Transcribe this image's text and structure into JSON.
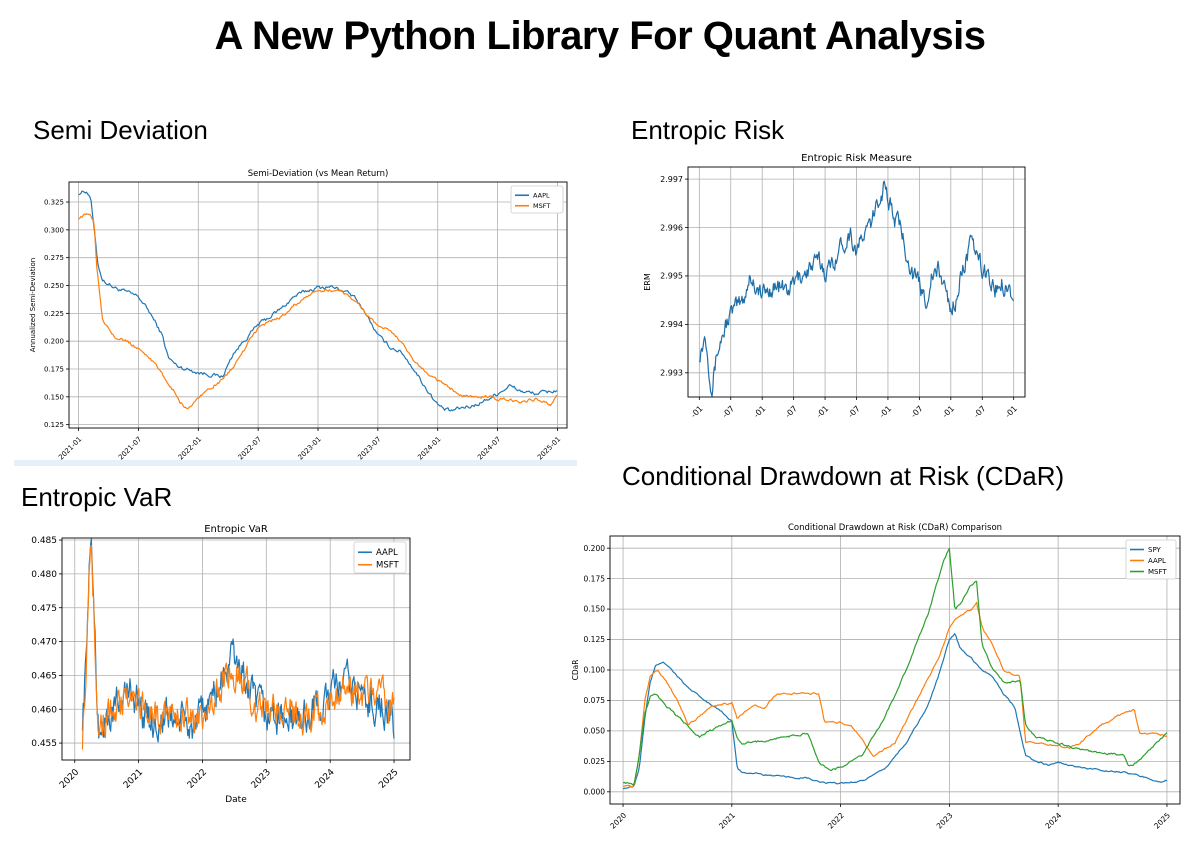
{
  "page": {
    "title": "A New Python Library For Quant Analysis"
  },
  "sections": {
    "semi": "Semi Deviation",
    "erm": "Entropic Risk",
    "evar": "Entropic VaR",
    "cdar": "Conditional Drawdown at Risk (CDaR)"
  },
  "colors": {
    "blue": "#1f77b4",
    "orange": "#ff7f0e",
    "green": "#2ca02c",
    "grid": "#b0b0b0"
  },
  "chart_data": [
    {
      "id": "semi",
      "type": "line",
      "title": "Semi-Deviation (vs Mean Return)",
      "xlabel": "",
      "ylabel": "Annualized Semi-Deviation",
      "xlim": [
        2020.92,
        2025.08
      ],
      "ylim": [
        0.122,
        0.343
      ],
      "x_ticks": [
        2021.0,
        2021.5,
        2022.0,
        2022.5,
        2023.0,
        2023.5,
        2024.0,
        2024.5,
        2025.0
      ],
      "x_tick_labels": [
        "2021-01",
        "2021-07",
        "2022-01",
        "2022-07",
        "2023-01",
        "2023-07",
        "2024-01",
        "2024-07",
        "2025-01"
      ],
      "y_ticks": [
        0.125,
        0.15,
        0.175,
        0.2,
        0.225,
        0.25,
        0.275,
        0.3,
        0.325
      ],
      "y_tick_labels": [
        "0.125",
        "0.150",
        "0.175",
        "0.200",
        "0.225",
        "0.250",
        "0.275",
        "0.300",
        "0.325"
      ],
      "legend": "top-right",
      "series": [
        {
          "name": "AAPL",
          "color": "#1f77b4",
          "noise": 0.0015,
          "x": [
            2021.0,
            2021.06,
            2021.1,
            2021.13,
            2021.16,
            2021.2,
            2021.3,
            2021.5,
            2021.6,
            2021.7,
            2021.75,
            2021.82,
            2021.9,
            2022.0,
            2022.1,
            2022.2,
            2022.3,
            2022.5,
            2022.6,
            2022.7,
            2022.8,
            2022.9,
            2023.0,
            2023.1,
            2023.2,
            2023.3,
            2023.4,
            2023.5,
            2023.6,
            2023.7,
            2023.8,
            2023.9,
            2024.0,
            2024.05,
            2024.1,
            2024.2,
            2024.3,
            2024.4,
            2024.5,
            2024.6,
            2024.7,
            2024.8,
            2024.9,
            2025.0
          ],
          "y": [
            0.333,
            0.335,
            0.33,
            0.3,
            0.27,
            0.255,
            0.248,
            0.24,
            0.225,
            0.205,
            0.185,
            0.178,
            0.175,
            0.172,
            0.17,
            0.168,
            0.19,
            0.215,
            0.222,
            0.23,
            0.24,
            0.245,
            0.248,
            0.249,
            0.246,
            0.24,
            0.225,
            0.205,
            0.195,
            0.19,
            0.175,
            0.158,
            0.143,
            0.139,
            0.137,
            0.14,
            0.142,
            0.147,
            0.153,
            0.16,
            0.155,
            0.153,
            0.154,
            0.156
          ]
        },
        {
          "name": "MSFT",
          "color": "#ff7f0e",
          "noise": 0.0012,
          "x": [
            2021.0,
            2021.06,
            2021.1,
            2021.13,
            2021.15,
            2021.2,
            2021.3,
            2021.4,
            2021.5,
            2021.6,
            2021.7,
            2021.75,
            2021.8,
            2021.85,
            2021.9,
            2021.95,
            2022.0,
            2022.1,
            2022.2,
            2022.3,
            2022.5,
            2022.6,
            2022.7,
            2022.8,
            2022.9,
            2023.0,
            2023.1,
            2023.2,
            2023.3,
            2023.4,
            2023.5,
            2023.6,
            2023.7,
            2023.8,
            2023.9,
            2024.0,
            2024.1,
            2024.2,
            2024.3,
            2024.4,
            2024.5,
            2024.6,
            2024.7,
            2024.8,
            2024.9,
            2024.95,
            2025.0
          ],
          "y": [
            0.311,
            0.313,
            0.315,
            0.307,
            0.27,
            0.22,
            0.205,
            0.2,
            0.193,
            0.185,
            0.17,
            0.162,
            0.155,
            0.145,
            0.14,
            0.142,
            0.15,
            0.158,
            0.165,
            0.178,
            0.212,
            0.218,
            0.222,
            0.232,
            0.24,
            0.244,
            0.246,
            0.245,
            0.238,
            0.225,
            0.214,
            0.21,
            0.198,
            0.182,
            0.172,
            0.165,
            0.158,
            0.152,
            0.15,
            0.15,
            0.148,
            0.147,
            0.146,
            0.148,
            0.145,
            0.143,
            0.152
          ]
        }
      ]
    },
    {
      "id": "erm",
      "type": "line",
      "title": "Entropic Risk Measure",
      "xlabel": "",
      "ylabel": "ERM",
      "xlim": [
        2019.82,
        2025.18
      ],
      "ylim": [
        2.9925,
        2.99725
      ],
      "x_ticks": [
        2020.0,
        2020.5,
        2021.0,
        2021.5,
        2022.0,
        2022.5,
        2023.0,
        2023.5,
        2024.0,
        2024.5,
        2025.0
      ],
      "x_tick_labels": [
        "-01",
        "-07",
        "-01",
        "-07",
        "-01",
        "-07",
        "-01",
        "-07",
        "-01",
        "-07",
        "-01"
      ],
      "y_ticks": [
        2.993,
        2.994,
        2.995,
        2.996,
        2.997
      ],
      "y_tick_labels": [
        "2.993",
        "2.994",
        "2.995",
        "2.996",
        "2.997"
      ],
      "series": [
        {
          "name": "",
          "color": "#1f6ea8",
          "noise": 0.00016,
          "x": [
            2020.0,
            2020.1,
            2020.15,
            2020.2,
            2020.28,
            2020.35,
            2020.45,
            2020.55,
            2020.7,
            2020.8,
            2020.9,
            2021.0,
            2021.2,
            2021.4,
            2021.6,
            2021.8,
            2021.9,
            2022.0,
            2022.1,
            2022.2,
            2022.3,
            2022.4,
            2022.5,
            2022.6,
            2022.7,
            2022.8,
            2022.85,
            2022.9,
            2022.95,
            2023.0,
            2023.1,
            2023.2,
            2023.3,
            2023.4,
            2023.5,
            2023.6,
            2023.7,
            2023.8,
            2023.9,
            2024.0,
            2024.1,
            2024.2,
            2024.3,
            2024.4,
            2024.5,
            2024.6,
            2024.7,
            2024.8,
            2024.9,
            2025.0
          ],
          "y": [
            2.9934,
            2.9938,
            2.9932,
            2.9927,
            2.9934,
            2.9937,
            2.9941,
            2.9943,
            2.9945,
            2.995,
            2.9948,
            2.9946,
            2.9948,
            2.9947,
            2.995,
            2.9952,
            2.9953,
            2.9951,
            2.9952,
            2.9955,
            2.9957,
            2.9959,
            2.9955,
            2.9958,
            2.996,
            2.9963,
            2.9966,
            2.9967,
            2.997,
            2.9966,
            2.9962,
            2.996,
            2.9955,
            2.995,
            2.9948,
            2.9945,
            2.995,
            2.9951,
            2.9948,
            2.9943,
            2.9946,
            2.9952,
            2.9956,
            2.9955,
            2.9951,
            2.995,
            2.9947,
            2.9949,
            2.9948,
            2.9946
          ]
        }
      ]
    },
    {
      "id": "evar",
      "type": "line",
      "title": "Entropic VaR",
      "xlabel": "Date",
      "ylabel": "",
      "xlim": [
        2019.8,
        2025.25
      ],
      "ylim": [
        0.4525,
        0.4853
      ],
      "x_ticks": [
        2020,
        2021,
        2022,
        2023,
        2024,
        2025
      ],
      "x_tick_labels": [
        "2020",
        "2021",
        "2022",
        "2023",
        "2024",
        "2025"
      ],
      "y_ticks": [
        0.455,
        0.46,
        0.465,
        0.47,
        0.475,
        0.48,
        0.485
      ],
      "y_tick_labels": [
        "0.455",
        "0.460",
        "0.465",
        "0.470",
        "0.475",
        "0.480",
        "0.485"
      ],
      "legend": "top-right",
      "series": [
        {
          "name": "AAPL",
          "color": "#1f77b4",
          "noise": 0.0022,
          "x": [
            2020.12,
            2020.18,
            2020.22,
            2020.26,
            2020.3,
            2020.34,
            2020.38,
            2020.5,
            2020.7,
            2020.9,
            2021.1,
            2021.3,
            2021.5,
            2021.7,
            2021.9,
            2022.1,
            2022.3,
            2022.45,
            2022.6,
            2022.8,
            2023.0,
            2023.2,
            2023.4,
            2023.6,
            2023.8,
            2024.0,
            2024.2,
            2024.4,
            2024.6,
            2024.8,
            2025.0
          ],
          "y": [
            0.459,
            0.467,
            0.481,
            0.484,
            0.476,
            0.462,
            0.457,
            0.458,
            0.461,
            0.463,
            0.459,
            0.458,
            0.459,
            0.458,
            0.457,
            0.461,
            0.464,
            0.468,
            0.466,
            0.461,
            0.459,
            0.459,
            0.458,
            0.459,
            0.46,
            0.462,
            0.464,
            0.463,
            0.461,
            0.461,
            0.457
          ]
        },
        {
          "name": "MSFT",
          "color": "#ff7f0e",
          "noise": 0.002,
          "x": [
            2020.12,
            2020.18,
            2020.22,
            2020.26,
            2020.3,
            2020.34,
            2020.38,
            2020.5,
            2020.7,
            2020.9,
            2021.1,
            2021.3,
            2021.5,
            2021.7,
            2021.9,
            2022.1,
            2022.3,
            2022.45,
            2022.6,
            2022.8,
            2023.0,
            2023.2,
            2023.4,
            2023.6,
            2023.8,
            2024.0,
            2024.2,
            2024.4,
            2024.6,
            2024.8,
            2025.0
          ],
          "y": [
            0.456,
            0.466,
            0.48,
            0.484,
            0.475,
            0.463,
            0.458,
            0.459,
            0.461,
            0.462,
            0.46,
            0.459,
            0.46,
            0.459,
            0.458,
            0.461,
            0.463,
            0.466,
            0.465,
            0.461,
            0.46,
            0.46,
            0.459,
            0.459,
            0.46,
            0.461,
            0.463,
            0.462,
            0.462,
            0.462,
            0.46
          ]
        }
      ]
    },
    {
      "id": "cdar",
      "type": "line",
      "title": "Conditional Drawdown at Risk (CDaR) Comparison",
      "xlabel": "",
      "ylabel": "CDaR",
      "xlim": [
        2019.88,
        2025.12
      ],
      "ylim": [
        -0.01,
        0.21
      ],
      "x_ticks": [
        2020,
        2021,
        2022,
        2023,
        2024,
        2025
      ],
      "x_tick_labels": [
        "2020",
        "2021",
        "2022",
        "2023",
        "2024",
        "2025"
      ],
      "y_ticks": [
        0,
        0.025,
        0.05,
        0.075,
        0.1,
        0.125,
        0.15,
        0.175,
        0.2
      ],
      "y_tick_labels": [
        "0.000",
        "0.025",
        "0.050",
        "0.075",
        "0.100",
        "0.125",
        "0.150",
        "0.175",
        "0.200"
      ],
      "legend": "top-right",
      "series": [
        {
          "name": "SPY",
          "color": "#1f77b4",
          "noise": 0.0006,
          "x": [
            2020.0,
            2020.1,
            2020.15,
            2020.2,
            2020.25,
            2020.3,
            2020.37,
            2020.45,
            2020.6,
            2020.75,
            2020.9,
            2021.0,
            2021.05,
            2021.1,
            2021.3,
            2021.5,
            2021.7,
            2021.8,
            2021.9,
            2022.0,
            2022.2,
            2022.4,
            2022.6,
            2022.8,
            2022.9,
            2023.0,
            2023.05,
            2023.1,
            2023.2,
            2023.3,
            2023.4,
            2023.5,
            2023.6,
            2023.65,
            2023.7,
            2023.8,
            2023.9,
            2024.0,
            2024.2,
            2024.4,
            2024.6,
            2024.8,
            2024.95,
            2025.0
          ],
          "y": [
            0.003,
            0.004,
            0.02,
            0.06,
            0.09,
            0.104,
            0.107,
            0.1,
            0.085,
            0.075,
            0.066,
            0.058,
            0.02,
            0.016,
            0.014,
            0.012,
            0.011,
            0.008,
            0.007,
            0.007,
            0.009,
            0.018,
            0.04,
            0.07,
            0.095,
            0.125,
            0.13,
            0.118,
            0.11,
            0.1,
            0.095,
            0.08,
            0.07,
            0.05,
            0.03,
            0.025,
            0.022,
            0.024,
            0.02,
            0.018,
            0.016,
            0.012,
            0.008,
            0.009
          ]
        },
        {
          "name": "AAPL",
          "color": "#ff7f0e",
          "noise": 0.0007,
          "x": [
            2020.0,
            2020.1,
            2020.15,
            2020.2,
            2020.25,
            2020.32,
            2020.4,
            2020.5,
            2020.6,
            2020.7,
            2020.8,
            2021.0,
            2021.05,
            2021.2,
            2021.3,
            2021.4,
            2021.6,
            2021.8,
            2021.85,
            2022.0,
            2022.1,
            2022.3,
            2022.5,
            2022.7,
            2022.9,
            2023.0,
            2023.1,
            2023.2,
            2023.25,
            2023.3,
            2023.4,
            2023.5,
            2023.6,
            2023.65,
            2023.7,
            2023.8,
            2024.0,
            2024.1,
            2024.2,
            2024.4,
            2024.6,
            2024.7,
            2024.75,
            2024.9,
            2025.0
          ],
          "y": [
            0.005,
            0.004,
            0.03,
            0.075,
            0.095,
            0.1,
            0.09,
            0.075,
            0.055,
            0.062,
            0.07,
            0.073,
            0.06,
            0.072,
            0.068,
            0.08,
            0.081,
            0.081,
            0.058,
            0.057,
            0.054,
            0.03,
            0.04,
            0.075,
            0.11,
            0.135,
            0.145,
            0.15,
            0.155,
            0.135,
            0.12,
            0.1,
            0.095,
            0.095,
            0.04,
            0.04,
            0.038,
            0.036,
            0.04,
            0.055,
            0.065,
            0.067,
            0.048,
            0.048,
            0.046
          ]
        },
        {
          "name": "MSFT",
          "color": "#2ca02c",
          "noise": 0.0008,
          "x": [
            2020.0,
            2020.1,
            2020.15,
            2020.2,
            2020.25,
            2020.3,
            2020.4,
            2020.5,
            2020.6,
            2020.7,
            2020.8,
            2020.9,
            2021.0,
            2021.05,
            2021.1,
            2021.3,
            2021.5,
            2021.7,
            2021.8,
            2021.9,
            2022.0,
            2022.2,
            2022.4,
            2022.6,
            2022.8,
            2022.95,
            2023.0,
            2023.05,
            2023.1,
            2023.2,
            2023.25,
            2023.3,
            2023.4,
            2023.5,
            2023.6,
            2023.65,
            2023.7,
            2023.8,
            2024.0,
            2024.2,
            2024.4,
            2024.6,
            2024.65,
            2024.8,
            2025.0
          ],
          "y": [
            0.008,
            0.006,
            0.03,
            0.065,
            0.078,
            0.08,
            0.07,
            0.062,
            0.054,
            0.045,
            0.05,
            0.055,
            0.058,
            0.045,
            0.04,
            0.042,
            0.045,
            0.048,
            0.025,
            0.018,
            0.02,
            0.03,
            0.06,
            0.1,
            0.145,
            0.19,
            0.2,
            0.15,
            0.155,
            0.17,
            0.173,
            0.12,
            0.1,
            0.09,
            0.09,
            0.092,
            0.055,
            0.045,
            0.04,
            0.035,
            0.032,
            0.03,
            0.02,
            0.03,
            0.049
          ]
        }
      ]
    }
  ]
}
